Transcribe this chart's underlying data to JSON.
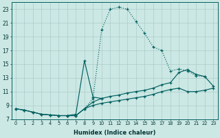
{
  "xlabel": "Humidex (Indice chaleur)",
  "background_color": "#cce8e4",
  "grid_color": "#aaccca",
  "line_color": "#006060",
  "xlim": [
    -0.5,
    23.5
  ],
  "ylim": [
    7,
    24
  ],
  "xticks": [
    0,
    1,
    2,
    3,
    4,
    5,
    6,
    7,
    8,
    9,
    10,
    11,
    12,
    13,
    14,
    15,
    16,
    17,
    18,
    19,
    20,
    21,
    22,
    23
  ],
  "yticks": [
    7,
    9,
    11,
    13,
    15,
    17,
    19,
    21,
    23
  ],
  "line_dotted_x": [
    0,
    1,
    2,
    3,
    4,
    5,
    6,
    7,
    8,
    9,
    10,
    11,
    12,
    13,
    14,
    15,
    16,
    17,
    18,
    19,
    20,
    21,
    22,
    23
  ],
  "line_dotted_y": [
    8.5,
    8.3,
    8.0,
    7.7,
    7.6,
    7.5,
    7.5,
    7.5,
    8.5,
    10.0,
    20.0,
    23.0,
    23.3,
    23.0,
    21.2,
    19.5,
    17.5,
    17.0,
    14.0,
    14.3,
    14.0,
    13.3,
    13.2,
    null
  ],
  "line_spike_x": [
    6,
    7,
    8,
    9,
    10
  ],
  "line_spike_y": [
    7.5,
    7.7,
    15.5,
    10.2,
    10.0
  ],
  "line_upper_x": [
    0,
    1,
    2,
    3,
    4,
    5,
    6,
    7,
    8,
    9,
    10,
    11,
    12,
    13,
    14,
    15,
    16,
    17,
    18,
    19,
    20,
    21,
    22,
    23
  ],
  "line_upper_y": [
    8.5,
    8.3,
    8.0,
    7.7,
    7.6,
    7.5,
    7.5,
    7.5,
    8.5,
    9.5,
    10.0,
    10.3,
    10.5,
    10.8,
    11.0,
    11.2,
    11.5,
    12.0,
    12.3,
    13.8,
    14.2,
    13.5,
    13.2,
    11.8
  ],
  "line_lower_x": [
    0,
    1,
    2,
    3,
    4,
    5,
    6,
    7,
    8,
    9,
    10,
    11,
    12,
    13,
    14,
    15,
    16,
    17,
    18,
    19,
    20,
    21,
    22,
    23
  ],
  "line_lower_y": [
    8.5,
    8.3,
    8.0,
    7.7,
    7.6,
    7.5,
    7.5,
    7.5,
    8.5,
    9.0,
    9.3,
    9.5,
    9.7,
    9.9,
    10.1,
    10.3,
    10.6,
    11.0,
    11.3,
    11.5,
    11.0,
    11.0,
    11.2,
    11.5
  ]
}
